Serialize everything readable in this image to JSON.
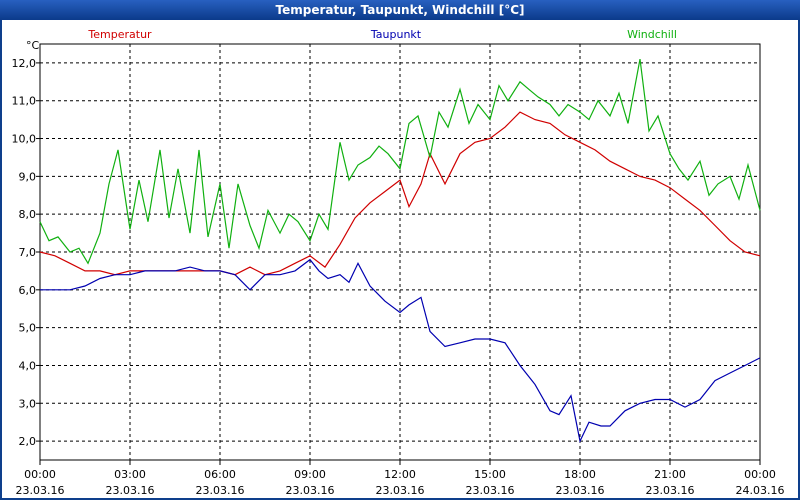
{
  "title": "Temperatur, Taupunkt, Windchill [°C]",
  "chart_data": {
    "type": "line",
    "unit_label": "°C",
    "ylim": [
      1.5,
      12.5
    ],
    "yticks": [
      "2,0",
      "3,0",
      "4,0",
      "5,0",
      "6,0",
      "7,0",
      "8,0",
      "9,0",
      "10,0",
      "11,0",
      "12,0"
    ],
    "ytick_values": [
      2,
      3,
      4,
      5,
      6,
      7,
      8,
      9,
      10,
      11,
      12
    ],
    "xlim": [
      0,
      24
    ],
    "xticks": [
      {
        "time": "00:00",
        "date": "23.03.16"
      },
      {
        "time": "03:00",
        "date": "23.03.16"
      },
      {
        "time": "06:00",
        "date": "23.03.16"
      },
      {
        "time": "09:00",
        "date": "23.03.16"
      },
      {
        "time": "12:00",
        "date": "23.03.16"
      },
      {
        "time": "15:00",
        "date": "23.03.16"
      },
      {
        "time": "18:00",
        "date": "23.03.16"
      },
      {
        "time": "21:00",
        "date": "23.03.16"
      },
      {
        "time": "00:00",
        "date": "24.03.16"
      }
    ],
    "grid": true,
    "series": [
      {
        "name": "Temperatur",
        "color": "#d00000",
        "x": [
          0,
          0.5,
          1,
          1.5,
          2,
          2.5,
          3,
          3.5,
          4,
          4.5,
          5,
          5.5,
          6,
          6.5,
          7,
          7.5,
          8,
          8.5,
          9,
          9.5,
          10,
          10.5,
          11,
          11.5,
          12,
          12.3,
          12.7,
          13,
          13.5,
          14,
          14.5,
          15,
          15.5,
          16,
          16.5,
          17,
          17.5,
          18,
          18.5,
          19,
          19.5,
          20,
          20.5,
          21,
          21.5,
          22,
          22.5,
          23,
          23.5,
          24
        ],
        "values": [
          7.0,
          6.9,
          6.7,
          6.5,
          6.5,
          6.4,
          6.5,
          6.5,
          6.5,
          6.5,
          6.5,
          6.5,
          6.5,
          6.4,
          6.6,
          6.4,
          6.5,
          6.7,
          6.9,
          6.6,
          7.2,
          7.9,
          8.3,
          8.6,
          8.9,
          8.2,
          8.8,
          9.6,
          8.8,
          9.6,
          9.9,
          10.0,
          10.3,
          10.7,
          10.5,
          10.4,
          10.1,
          9.9,
          9.7,
          9.4,
          9.2,
          9.0,
          8.9,
          8.7,
          8.4,
          8.1,
          7.7,
          7.3,
          7.0,
          6.9
        ]
      },
      {
        "name": "Taupunkt",
        "color": "#0000b0",
        "x": [
          0,
          0.5,
          1,
          1.5,
          2,
          2.5,
          3,
          3.5,
          4,
          4.5,
          5,
          5.5,
          6,
          6.5,
          7,
          7.5,
          8,
          8.5,
          9,
          9.3,
          9.6,
          10,
          10.3,
          10.6,
          11,
          11.5,
          12,
          12.3,
          12.7,
          13,
          13.5,
          14,
          14.5,
          15,
          15.5,
          16,
          16.5,
          17,
          17.3,
          17.7,
          18,
          18.3,
          18.7,
          19,
          19.5,
          20,
          20.5,
          21,
          21.5,
          22,
          22.5,
          23,
          23.5,
          24
        ],
        "values": [
          6.0,
          6.0,
          6.0,
          6.1,
          6.3,
          6.4,
          6.4,
          6.5,
          6.5,
          6.5,
          6.6,
          6.5,
          6.5,
          6.4,
          6.0,
          6.4,
          6.4,
          6.5,
          6.8,
          6.5,
          6.3,
          6.4,
          6.2,
          6.7,
          6.1,
          5.7,
          5.4,
          5.6,
          5.8,
          4.9,
          4.5,
          4.6,
          4.7,
          4.7,
          4.6,
          4.0,
          3.5,
          2.8,
          2.7,
          3.2,
          2.0,
          2.5,
          2.4,
          2.4,
          2.8,
          3.0,
          3.1,
          3.1,
          2.9,
          3.1,
          3.6,
          3.8,
          4.0,
          4.2
        ]
      },
      {
        "name": "Windchill",
        "color": "#10b010",
        "x": [
          0,
          0.3,
          0.6,
          1,
          1.3,
          1.6,
          2,
          2.3,
          2.6,
          3,
          3.3,
          3.6,
          4,
          4.3,
          4.6,
          5,
          5.3,
          5.6,
          6,
          6.3,
          6.6,
          7,
          7.3,
          7.6,
          8,
          8.3,
          8.6,
          9,
          9.3,
          9.6,
          10,
          10.3,
          10.6,
          11,
          11.3,
          11.6,
          12,
          12.3,
          12.6,
          13,
          13.3,
          13.6,
          14,
          14.3,
          14.6,
          15,
          15.3,
          15.6,
          16,
          16.3,
          16.6,
          17,
          17.3,
          17.6,
          18,
          18.3,
          18.6,
          19,
          19.3,
          19.6,
          20,
          20.3,
          20.6,
          21,
          21.3,
          21.6,
          22,
          22.3,
          22.6,
          23,
          23.3,
          23.6,
          24
        ],
        "values": [
          7.8,
          7.3,
          7.4,
          7.0,
          7.1,
          6.7,
          7.5,
          8.8,
          9.7,
          7.6,
          8.9,
          7.8,
          9.7,
          7.9,
          9.2,
          7.5,
          9.7,
          7.4,
          8.8,
          7.1,
          8.8,
          7.7,
          7.1,
          8.1,
          7.5,
          8.0,
          7.8,
          7.3,
          8.0,
          7.6,
          9.9,
          8.9,
          9.3,
          9.5,
          9.8,
          9.6,
          9.2,
          10.4,
          10.6,
          9.5,
          10.7,
          10.3,
          11.3,
          10.4,
          10.9,
          10.5,
          11.4,
          11.0,
          11.5,
          11.3,
          11.1,
          10.9,
          10.6,
          10.9,
          10.7,
          10.5,
          11.0,
          10.6,
          11.2,
          10.4,
          12.1,
          10.2,
          10.6,
          9.6,
          9.2,
          8.9,
          9.4,
          8.5,
          8.8,
          9.0,
          8.4,
          9.3,
          8.1
        ]
      }
    ]
  }
}
